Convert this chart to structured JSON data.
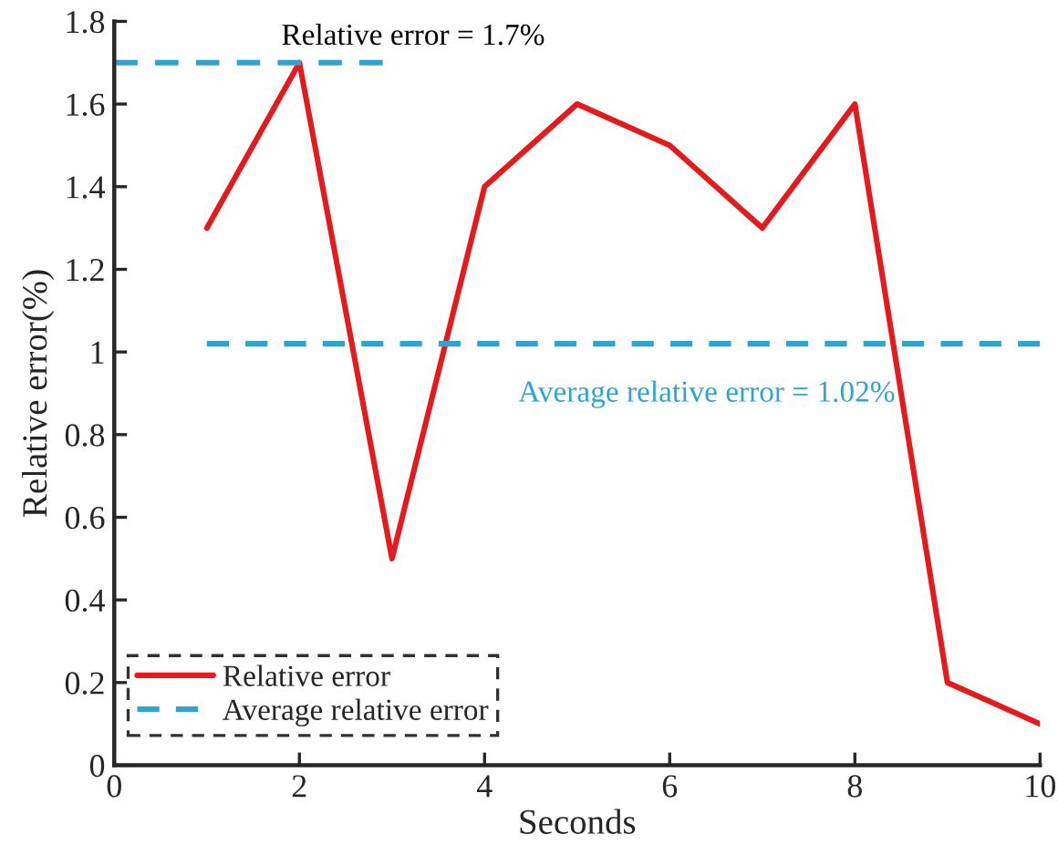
{
  "chart_data": {
    "type": "line",
    "xlabel": "Seconds",
    "ylabel": "Relative error(%)",
    "xlim": [
      0,
      10
    ],
    "xticks": [
      0,
      2,
      4,
      6,
      8,
      10
    ],
    "ylim": [
      0,
      1.8
    ],
    "yticks": [
      0,
      0.2,
      0.4,
      0.6,
      0.8,
      1,
      1.2,
      1.4,
      1.6,
      1.8
    ],
    "series": [
      {
        "name": "Relative error",
        "color": "#e41a1c",
        "line_style": "solid",
        "x": [
          1,
          2,
          3,
          4,
          5,
          6,
          7,
          8,
          9,
          10
        ],
        "values": [
          1.3,
          1.7,
          0.5,
          1.4,
          1.6,
          1.5,
          1.3,
          1.6,
          0.2,
          0.1
        ]
      },
      {
        "name": "Average relative error",
        "color": "#2fa4d0",
        "line_style": "dashed",
        "x": [
          1,
          10
        ],
        "values": [
          1.02,
          1.02
        ]
      },
      {
        "color": "#2fa4d0",
        "line_style": "dashed",
        "x": [
          0,
          2.9
        ],
        "values": [
          1.7,
          1.7
        ]
      }
    ],
    "annotations": [
      {
        "text": "Relative error = 1.7%",
        "x": 2.9,
        "y": 1.7
      },
      {
        "text": "Average relative error = 1.02%",
        "x": 6.4,
        "y": 1.02
      }
    ],
    "legend": "bottom left",
    "grid": false,
    "marker": "none"
  }
}
